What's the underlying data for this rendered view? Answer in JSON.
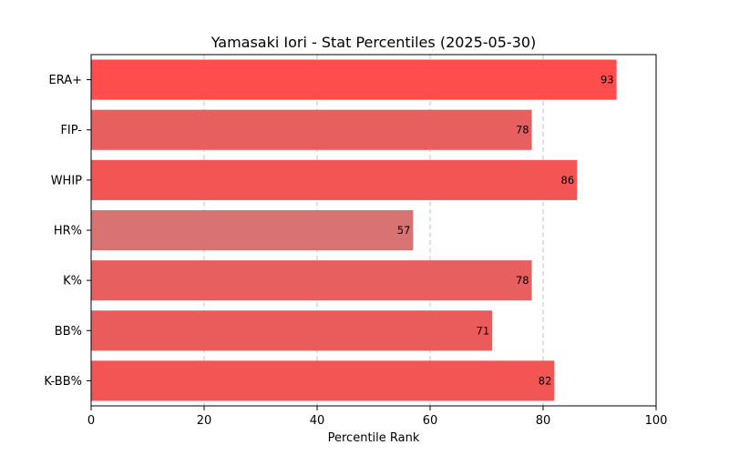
{
  "chart_data": {
    "type": "bar",
    "orientation": "horizontal",
    "title": "Yamasaki Iori - Stat Percentiles (2025-05-30)",
    "xlabel": "Percentile Rank",
    "ylabel": "",
    "xlim": [
      0,
      100
    ],
    "xticks": [
      0,
      20,
      40,
      60,
      80,
      100
    ],
    "grid": "x-axis dashed",
    "categories": [
      "ERA+",
      "FIP-",
      "WHIP",
      "HR%",
      "K%",
      "BB%",
      "K-BB%"
    ],
    "values": [
      93,
      78,
      86,
      57,
      78,
      71,
      82
    ],
    "colors": [
      "#ff4d4d",
      "#e85f5f",
      "#f35454",
      "#d97373",
      "#e85f5f",
      "#ea5c5c",
      "#f35454"
    ]
  }
}
